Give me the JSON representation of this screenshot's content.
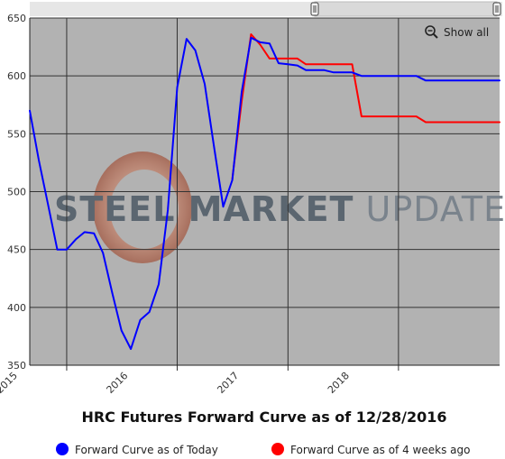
{
  "chart_data": {
    "type": "line",
    "title": "HRC Futures Forward Curve as of 12/28/2016",
    "xlabel": "",
    "ylabel": "",
    "ylim": [
      350,
      650
    ],
    "y_ticks": [
      350,
      400,
      450,
      500,
      550,
      600,
      650
    ],
    "x_ticks": [
      "2015",
      "2016",
      "2017",
      "2018"
    ],
    "x_range": [
      "2014-09-01",
      "2018-12-01"
    ],
    "grid": true,
    "legend": "bottom",
    "series": [
      {
        "name": "Forward Curve as of Today",
        "color": "#0000ff",
        "points": [
          [
            "2014-09-01",
            570
          ],
          [
            "2014-10-01",
            527
          ],
          [
            "2014-11-01",
            488
          ],
          [
            "2014-12-01",
            450
          ],
          [
            "2015-01-01",
            450
          ],
          [
            "2015-02-01",
            459
          ],
          [
            "2015-03-01",
            465
          ],
          [
            "2015-04-01",
            464
          ],
          [
            "2015-05-01",
            447
          ],
          [
            "2015-06-01",
            412
          ],
          [
            "2015-07-01",
            380
          ],
          [
            "2015-08-01",
            364
          ],
          [
            "2015-09-01",
            389
          ],
          [
            "2015-10-01",
            396
          ],
          [
            "2015-11-01",
            420
          ],
          [
            "2015-12-01",
            484
          ],
          [
            "2016-01-01",
            590
          ],
          [
            "2016-02-01",
            632
          ],
          [
            "2016-03-01",
            622
          ],
          [
            "2016-04-01",
            593
          ],
          [
            "2016-05-01",
            540
          ],
          [
            "2016-06-01",
            487
          ],
          [
            "2016-07-01",
            510
          ],
          [
            "2016-08-01",
            586
          ],
          [
            "2016-09-01",
            633
          ],
          [
            "2016-10-01",
            629
          ],
          [
            "2016-11-01",
            628
          ],
          [
            "2016-12-01",
            611
          ],
          [
            "2017-01-01",
            610
          ],
          [
            "2017-02-01",
            609
          ],
          [
            "2017-03-01",
            605
          ],
          [
            "2017-04-01",
            605
          ],
          [
            "2017-05-01",
            605
          ],
          [
            "2017-06-01",
            603
          ],
          [
            "2017-07-01",
            603
          ],
          [
            "2017-08-01",
            603
          ],
          [
            "2017-09-01",
            600
          ],
          [
            "2017-10-01",
            600
          ],
          [
            "2017-11-01",
            600
          ],
          [
            "2017-12-01",
            600
          ],
          [
            "2018-01-01",
            600
          ],
          [
            "2018-02-01",
            600
          ],
          [
            "2018-03-01",
            600
          ],
          [
            "2018-04-01",
            596
          ],
          [
            "2018-05-01",
            596
          ],
          [
            "2018-06-01",
            596
          ],
          [
            "2018-07-01",
            596
          ],
          [
            "2018-08-01",
            596
          ],
          [
            "2018-09-01",
            596
          ],
          [
            "2018-10-01",
            596
          ],
          [
            "2018-11-01",
            596
          ],
          [
            "2018-12-01",
            596
          ]
        ]
      },
      {
        "name": "Forward Curve as of 4 weeks ago",
        "color": "#ff0000",
        "points": [
          [
            "2016-07-01",
            511
          ],
          [
            "2016-08-01",
            578
          ],
          [
            "2016-09-01",
            636
          ],
          [
            "2016-10-01",
            627
          ],
          [
            "2016-11-01",
            615
          ],
          [
            "2016-12-01",
            615
          ],
          [
            "2017-01-01",
            615
          ],
          [
            "2017-02-01",
            615
          ],
          [
            "2017-03-01",
            610
          ],
          [
            "2017-04-01",
            610
          ],
          [
            "2017-05-01",
            610
          ],
          [
            "2017-06-01",
            610
          ],
          [
            "2017-07-01",
            610
          ],
          [
            "2017-08-01",
            610
          ],
          [
            "2017-09-01",
            565
          ],
          [
            "2017-10-01",
            565
          ],
          [
            "2017-11-01",
            565
          ],
          [
            "2017-12-01",
            565
          ],
          [
            "2018-01-01",
            565
          ],
          [
            "2018-02-01",
            565
          ],
          [
            "2018-03-01",
            565
          ],
          [
            "2018-04-01",
            560
          ],
          [
            "2018-05-01",
            560
          ],
          [
            "2018-06-01",
            560
          ],
          [
            "2018-07-01",
            560
          ],
          [
            "2018-08-01",
            560
          ],
          [
            "2018-09-01",
            560
          ],
          [
            "2018-10-01",
            560
          ],
          [
            "2018-11-01",
            560
          ],
          [
            "2018-12-01",
            560
          ]
        ]
      }
    ]
  },
  "ui": {
    "show_all_label": "Show all"
  },
  "watermark": {
    "text_bold": "STEEL MARKET",
    "text_light": " UPDATE"
  },
  "colors": {
    "plot_background": "#b2b2b2",
    "gridline": "#333333",
    "navigator_bar": "#d9d9d9"
  }
}
